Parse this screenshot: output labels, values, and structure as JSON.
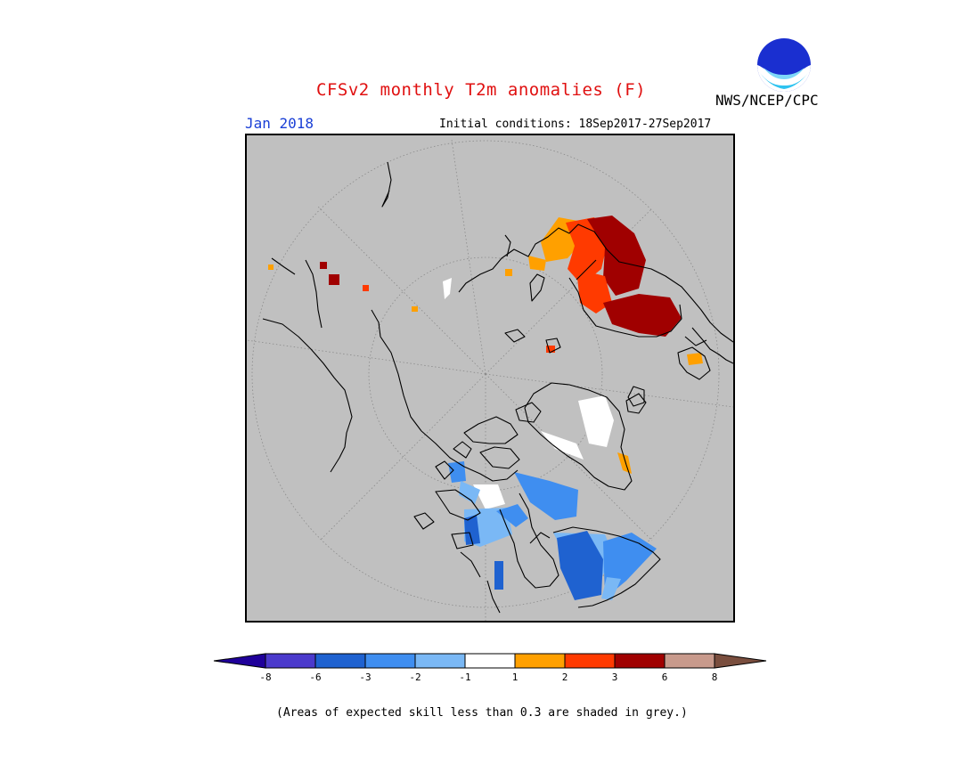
{
  "header": {
    "title": "CFSv2 monthly T2m anomalies (F)",
    "valid_month": "Jan 2018",
    "initial_conditions": "Initial conditions: 18Sep2017-27Sep2017",
    "agency": "NWS/NCEP/CPC",
    "logo_text": "NOAA"
  },
  "map": {
    "projection": "north-polar-stereographic",
    "background_color": "#c0c0c0",
    "coastline_color": "#000000",
    "grid_color": "#888888"
  },
  "colorbar": {
    "tick_labels": [
      "-8",
      "-6",
      "-3",
      "-2",
      "-1",
      "1",
      "2",
      "3",
      "6",
      "8"
    ],
    "colors": [
      "#1f009a",
      "#4b3acc",
      "#1f62d0",
      "#3f8ef0",
      "#7ab8f5",
      "#ffffff",
      "#ffa000",
      "#ff3a00",
      "#a00000",
      "#c89a8c",
      "#7a4e3e"
    ]
  },
  "footnote": "(Areas of expected skill less than 0.3 are shaded in grey.)"
}
